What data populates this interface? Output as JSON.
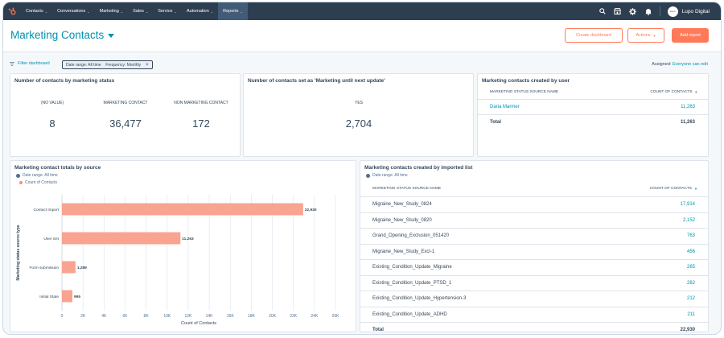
{
  "nav": {
    "items": [
      {
        "label": "Contacts",
        "active": false
      },
      {
        "label": "Conversations",
        "active": false
      },
      {
        "label": "Marketing",
        "active": false
      },
      {
        "label": "Sales",
        "active": false
      },
      {
        "label": "Service",
        "active": false
      },
      {
        "label": "Automation",
        "active": false
      },
      {
        "label": "Reports",
        "active": true
      }
    ],
    "account_name": "Lupo Digital",
    "avatar_text": "Lupo"
  },
  "header": {
    "title": "Marketing Contacts",
    "create_dashboard": "Create dashboard",
    "actions": "Actions",
    "add_report": "Add report"
  },
  "filters": {
    "filter_dashboard": "Filter dashboard",
    "chip": "Date range: All time    Frequency: Monthly",
    "assigned_label": "Assigned:",
    "assigned_value": "Everyone can edit"
  },
  "card_status": {
    "title": "Number of contacts by marketing status",
    "kpis": [
      {
        "label": "(NO VALUE)",
        "value": "8"
      },
      {
        "label": "MARKETING CONTACT",
        "value": "36,477"
      },
      {
        "label": "NON MARKETING CONTACT",
        "value": "172"
      }
    ]
  },
  "card_until": {
    "title": "Number of contacts set as 'Marketing until next update'",
    "kpi": {
      "label": "YES",
      "value": "2,704"
    }
  },
  "card_user": {
    "title": "Marketing contacts created by user",
    "col1": "MARKETING STATUS SOURCE NAME",
    "col2": "COUNT OF CONTACTS",
    "rows": [
      {
        "name": "Daria Marmer",
        "count": "11,263"
      }
    ],
    "total_label": "Total",
    "total_value": "11,263"
  },
  "card_source": {
    "title": "Marketing contact totals by source",
    "date_range": "Date range: All time",
    "legend": "Count of Contacts"
  },
  "chart_data": {
    "type": "bar",
    "orientation": "horizontal",
    "categories": [
      "Contact Import",
      "User Set",
      "Form submission",
      "Initial State"
    ],
    "values": [
      22930,
      11263,
      1289,
      995
    ],
    "value_labels": [
      "22,930",
      "11,263",
      "1,289",
      "995"
    ],
    "series": [
      {
        "name": "Count of Contacts",
        "values": [
          22930,
          11263,
          1289,
          995
        ]
      }
    ],
    "xlabel": "Count of Contacts",
    "ylabel": "Marketing status source type",
    "xlim": [
      0,
      26000
    ],
    "xticks": [
      "0",
      "2K",
      "4K",
      "6K",
      "8K",
      "10K",
      "12K",
      "14K",
      "16K",
      "18K",
      "20K",
      "22K",
      "24K",
      "26K"
    ],
    "xtick_values": [
      0,
      2000,
      4000,
      6000,
      8000,
      10000,
      12000,
      14000,
      16000,
      18000,
      20000,
      22000,
      24000,
      26000
    ],
    "grid": true,
    "bar_color": "#f8a491"
  },
  "card_import": {
    "title": "Marketing contacts created by imported list",
    "date_range": "Date range: All time",
    "col1": "MARKETING STATUS SOURCE NAME",
    "col2": "COUNT OF CONTACTS",
    "rows": [
      {
        "name": "Migraine_New_Study_0824",
        "count": "17,914"
      },
      {
        "name": "Migraine_New_Study_0820",
        "count": "2,152"
      },
      {
        "name": "Grand_Opening_Exclusion_051420",
        "count": "763"
      },
      {
        "name": "Migraine_New_Study_Excl-1",
        "count": "456"
      },
      {
        "name": "Existing_Condition_Update_Migraine",
        "count": "265"
      },
      {
        "name": "Existing_Condition_Update_PTSD_1",
        "count": "262"
      },
      {
        "name": "Existing_Condition_Update_Hypertension-3",
        "count": "212"
      },
      {
        "name": "Existing_Condition_Update_ADHD",
        "count": "211"
      }
    ],
    "total_label": "Total",
    "total_value": "22,930"
  },
  "colors": {
    "nav_bg": "#2d3e50",
    "accent_orange": "#ff7a59",
    "link_teal": "#0091ae",
    "bar": "#f8a491"
  }
}
